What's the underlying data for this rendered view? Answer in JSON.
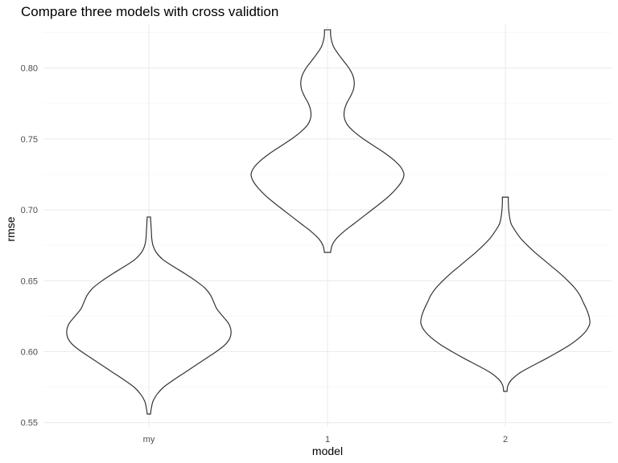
{
  "chart_data": {
    "type": "violin",
    "title": "Compare three models with cross validtion",
    "xlabel": "model",
    "ylabel": "rmse",
    "categories": [
      "my",
      "1",
      "2"
    ],
    "ylim": [
      0.547,
      0.831
    ],
    "yticks": [
      0.55,
      0.6,
      0.65,
      0.7,
      0.75,
      0.8
    ],
    "ytick_labels": [
      "0.55",
      "0.60",
      "0.65",
      "0.70",
      "0.75",
      "0.80"
    ],
    "grid": true,
    "colors": {
      "outline": "#333333",
      "grid": "#ebebeb",
      "text": "#4d4d4d"
    },
    "series": [
      {
        "category": "my",
        "min": 0.556,
        "max": 0.695,
        "profile": [
          [
            0.556,
            0.02
          ],
          [
            0.56,
            0.03
          ],
          [
            0.565,
            0.05
          ],
          [
            0.57,
            0.1
          ],
          [
            0.575,
            0.18
          ],
          [
            0.58,
            0.3
          ],
          [
            0.585,
            0.43
          ],
          [
            0.59,
            0.56
          ],
          [
            0.595,
            0.69
          ],
          [
            0.6,
            0.82
          ],
          [
            0.605,
            0.93
          ],
          [
            0.61,
            0.99
          ],
          [
            0.615,
            1.0
          ],
          [
            0.62,
            0.97
          ],
          [
            0.625,
            0.9
          ],
          [
            0.63,
            0.83
          ],
          [
            0.635,
            0.79
          ],
          [
            0.64,
            0.75
          ],
          [
            0.645,
            0.68
          ],
          [
            0.65,
            0.57
          ],
          [
            0.655,
            0.44
          ],
          [
            0.66,
            0.3
          ],
          [
            0.665,
            0.17
          ],
          [
            0.67,
            0.09
          ],
          [
            0.675,
            0.05
          ],
          [
            0.68,
            0.035
          ],
          [
            0.685,
            0.03
          ],
          [
            0.69,
            0.025
          ],
          [
            0.695,
            0.02
          ]
        ]
      },
      {
        "category": "1",
        "min": 0.67,
        "max": 0.827,
        "profile": [
          [
            0.67,
            0.04
          ],
          [
            0.675,
            0.06
          ],
          [
            0.68,
            0.12
          ],
          [
            0.685,
            0.22
          ],
          [
            0.69,
            0.34
          ],
          [
            0.695,
            0.46
          ],
          [
            0.7,
            0.58
          ],
          [
            0.705,
            0.7
          ],
          [
            0.71,
            0.81
          ],
          [
            0.715,
            0.9
          ],
          [
            0.72,
            0.97
          ],
          [
            0.725,
            1.0
          ],
          [
            0.73,
            0.96
          ],
          [
            0.735,
            0.87
          ],
          [
            0.74,
            0.75
          ],
          [
            0.745,
            0.61
          ],
          [
            0.75,
            0.47
          ],
          [
            0.755,
            0.35
          ],
          [
            0.76,
            0.26
          ],
          [
            0.765,
            0.22
          ],
          [
            0.77,
            0.22
          ],
          [
            0.775,
            0.25
          ],
          [
            0.78,
            0.3
          ],
          [
            0.785,
            0.34
          ],
          [
            0.79,
            0.35
          ],
          [
            0.795,
            0.33
          ],
          [
            0.8,
            0.28
          ],
          [
            0.805,
            0.21
          ],
          [
            0.81,
            0.14
          ],
          [
            0.815,
            0.08
          ],
          [
            0.82,
            0.05
          ],
          [
            0.824,
            0.04
          ],
          [
            0.827,
            0.04
          ]
        ]
      },
      {
        "category": "2",
        "min": 0.572,
        "max": 0.709,
        "profile": [
          [
            0.572,
            0.02
          ],
          [
            0.576,
            0.03
          ],
          [
            0.58,
            0.07
          ],
          [
            0.585,
            0.17
          ],
          [
            0.59,
            0.32
          ],
          [
            0.595,
            0.48
          ],
          [
            0.6,
            0.63
          ],
          [
            0.605,
            0.77
          ],
          [
            0.61,
            0.88
          ],
          [
            0.615,
            0.96
          ],
          [
            0.62,
            1.0
          ],
          [
            0.625,
            0.99
          ],
          [
            0.63,
            0.96
          ],
          [
            0.635,
            0.92
          ],
          [
            0.64,
            0.88
          ],
          [
            0.645,
            0.82
          ],
          [
            0.65,
            0.74
          ],
          [
            0.655,
            0.65
          ],
          [
            0.66,
            0.55
          ],
          [
            0.665,
            0.45
          ],
          [
            0.67,
            0.35
          ],
          [
            0.675,
            0.26
          ],
          [
            0.68,
            0.18
          ],
          [
            0.685,
            0.12
          ],
          [
            0.69,
            0.07
          ],
          [
            0.695,
            0.05
          ],
          [
            0.7,
            0.04
          ],
          [
            0.705,
            0.035
          ],
          [
            0.709,
            0.035
          ]
        ]
      }
    ]
  }
}
